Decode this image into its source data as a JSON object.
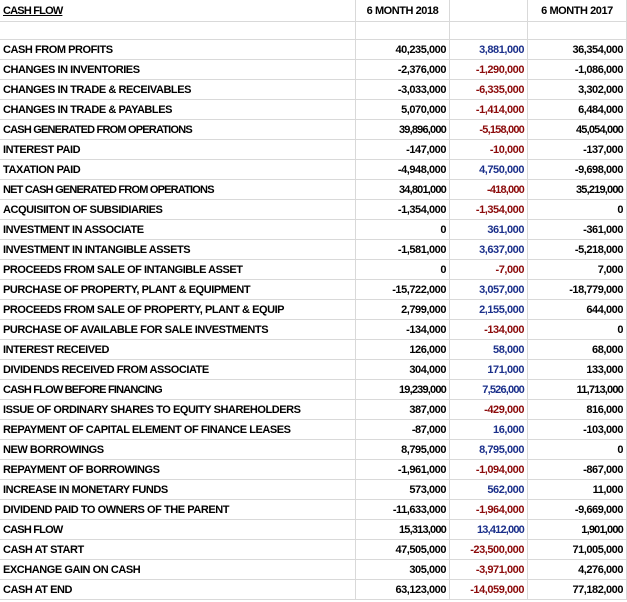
{
  "header": {
    "title": "CASH FLOW",
    "col_2018": "6 MONTH 2018",
    "col_2017": "6 MONTH 2017"
  },
  "rows": [
    {
      "label": "CASH FROM PROFITS",
      "values": [
        "40,235,000",
        "3,881,000",
        "36,354,000"
      ]
    },
    {
      "label": "CHANGES IN INVENTORIES",
      "values": [
        "-2,376,000",
        "-1,290,000",
        "-1,086,000"
      ]
    },
    {
      "label": "CHANGES IN TRADE & RECEIVABLES",
      "values": [
        "-3,033,000",
        "-6,335,000",
        "3,302,000"
      ]
    },
    {
      "label": "CHANGES IN TRADE & PAYABLES",
      "values": [
        "5,070,000",
        "-1,414,000",
        "6,484,000"
      ]
    },
    {
      "label": "CASH GENERATED FROM OPERATIONS",
      "values": [
        "39,896,000",
        "-5,158,000",
        "45,054,000"
      ],
      "bold": true
    },
    {
      "label": "INTEREST PAID",
      "values": [
        "-147,000",
        "-10,000",
        "-137,000"
      ]
    },
    {
      "label": "TAXATION PAID",
      "values": [
        "-4,948,000",
        "4,750,000",
        "-9,698,000"
      ]
    },
    {
      "label": "NET CASH GENERATED FROM OPERATIONS",
      "values": [
        "34,801,000",
        "-418,000",
        "35,219,000"
      ],
      "bold": true
    },
    {
      "label": "ACQUISIITON OF SUBSIDIARIES",
      "values": [
        "-1,354,000",
        "-1,354,000",
        "0"
      ]
    },
    {
      "label": "INVESTMENT IN ASSOCIATE",
      "values": [
        "0",
        "361,000",
        "-361,000"
      ]
    },
    {
      "label": "INVESTMENT IN INTANGIBLE ASSETS",
      "values": [
        "-1,581,000",
        "3,637,000",
        "-5,218,000"
      ]
    },
    {
      "label": "PROCEEDS FROM SALE OF INTANGIBLE ASSET",
      "values": [
        "0",
        "-7,000",
        "7,000"
      ]
    },
    {
      "label": "PURCHASE OF PROPERTY, PLANT & EQUIPMENT",
      "values": [
        "-15,722,000",
        "3,057,000",
        "-18,779,000"
      ]
    },
    {
      "label": "PROCEEDS FROM SALE OF PROPERTY, PLANT & EQUIP",
      "values": [
        "2,799,000",
        "2,155,000",
        "644,000"
      ]
    },
    {
      "label": "PURCHASE OF AVAILABLE FOR SALE INVESTMENTS",
      "values": [
        "-134,000",
        "-134,000",
        "0"
      ]
    },
    {
      "label": "INTEREST RECEIVED",
      "values": [
        "126,000",
        "58,000",
        "68,000"
      ]
    },
    {
      "label": "DIVIDENDS RECEIVED FROM ASSOCIATE",
      "values": [
        "304,000",
        "171,000",
        "133,000"
      ]
    },
    {
      "label": "CASH FLOW BEFORE FINANCING",
      "values": [
        "19,239,000",
        "7,526,000",
        "11,713,000"
      ],
      "bold": true
    },
    {
      "label": "ISSUE OF ORDINARY SHARES TO EQUITY SHAREHOLDERS",
      "values": [
        "387,000",
        "-429,000",
        "816,000"
      ]
    },
    {
      "label": "REPAYMENT OF CAPITAL ELEMENT OF FINANCE LEASES",
      "values": [
        "-87,000",
        "16,000",
        "-103,000"
      ]
    },
    {
      "label": "NEW BORROWINGS",
      "values": [
        "8,795,000",
        "8,795,000",
        "0"
      ]
    },
    {
      "label": "REPAYMENT OF BORROWINGS",
      "values": [
        "-1,961,000",
        "-1,094,000",
        "-867,000"
      ]
    },
    {
      "label": "INCREASE IN MONETARY FUNDS",
      "values": [
        "573,000",
        "562,000",
        "11,000"
      ]
    },
    {
      "label": "DIVIDEND PAID TO OWNERS OF THE PARENT",
      "values": [
        "-11,633,000",
        "-1,964,000",
        "-9,669,000"
      ]
    },
    {
      "label": "CASH FLOW",
      "values": [
        "15,313,000",
        "13,412,000",
        "1,901,000"
      ],
      "bold": true
    },
    {
      "label": "CASH AT START",
      "values": [
        "47,505,000",
        "-23,500,000",
        "71,005,000"
      ]
    },
    {
      "label": "EXCHANGE GAIN ON CASH",
      "values": [
        "305,000",
        "-3,971,000",
        "4,276,000"
      ]
    },
    {
      "label": "CASH AT END",
      "values": [
        "63,123,000",
        "-14,059,000",
        "77,182,000"
      ]
    }
  ]
}
